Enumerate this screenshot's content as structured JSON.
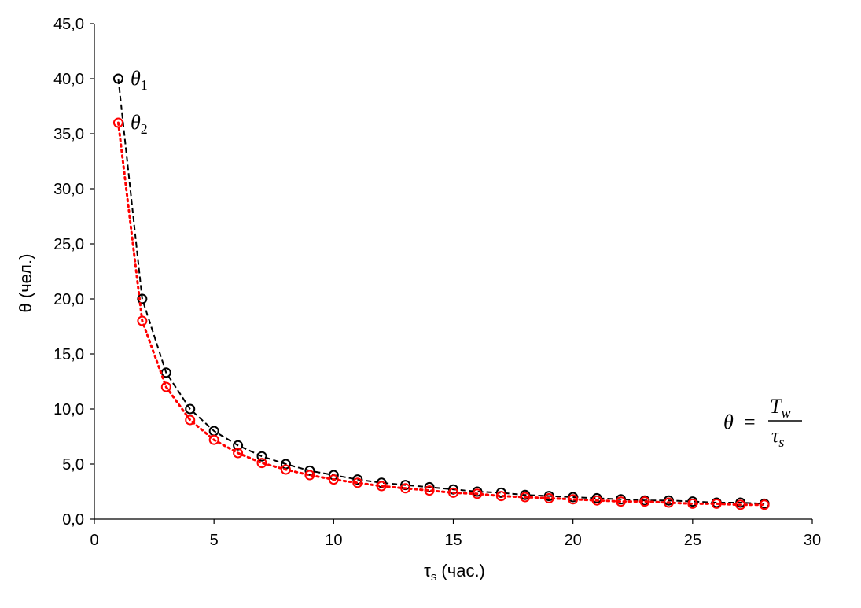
{
  "chart_data": {
    "type": "line",
    "title": "",
    "xlabel": "τ",
    "xlabel_sub": "s",
    "xlabel_tail": " (час.)",
    "ylabel": "θ (чел.)",
    "xlim": [
      0,
      30
    ],
    "ylim": [
      0,
      45
    ],
    "x_ticks": [
      "0",
      "5",
      "10",
      "15",
      "20",
      "25",
      "30"
    ],
    "y_ticks": [
      "0,0",
      "5,0",
      "10,0",
      "15,0",
      "20,0",
      "25,0",
      "30,0",
      "35,0",
      "40,0",
      "45,0"
    ],
    "grid": false,
    "legend": "none",
    "x": [
      1,
      2,
      3,
      4,
      5,
      6,
      7,
      8,
      9,
      10,
      11,
      12,
      13,
      14,
      15,
      16,
      17,
      18,
      19,
      20,
      21,
      22,
      23,
      24,
      25,
      26,
      27,
      28
    ],
    "series": [
      {
        "name": "θ1",
        "label_main": "θ",
        "label_sub": "1",
        "color": "#000000",
        "line_style": "dashed",
        "marker": "open-circle",
        "values": [
          40.0,
          20.0,
          13.3,
          10.0,
          8.0,
          6.7,
          5.7,
          5.0,
          4.4,
          4.0,
          3.6,
          3.3,
          3.1,
          2.9,
          2.7,
          2.5,
          2.4,
          2.2,
          2.1,
          2.0,
          1.9,
          1.8,
          1.7,
          1.7,
          1.6,
          1.5,
          1.5,
          1.4
        ]
      },
      {
        "name": "θ2",
        "label_main": "θ",
        "label_sub": "2",
        "color": "#ff0000",
        "line_style": "dotted",
        "marker": "open-circle",
        "values": [
          36.0,
          18.0,
          12.0,
          9.0,
          7.2,
          6.0,
          5.1,
          4.5,
          4.0,
          3.6,
          3.3,
          3.0,
          2.8,
          2.6,
          2.4,
          2.3,
          2.1,
          2.0,
          1.9,
          1.8,
          1.7,
          1.6,
          1.6,
          1.5,
          1.4,
          1.4,
          1.3,
          1.3
        ]
      }
    ],
    "formula": {
      "lhs": "θ",
      "eq": "=",
      "num": "T",
      "num_sub": "w",
      "den": "τ",
      "den_sub": "s"
    }
  }
}
